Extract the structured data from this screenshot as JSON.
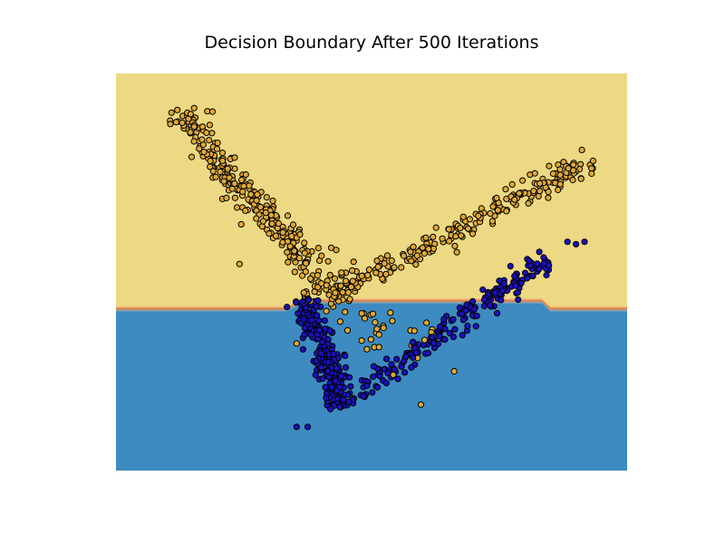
{
  "chart_data": {
    "type": "scatter",
    "title": "Decision Boundary After 500 Iterations",
    "xlabel": "",
    "ylabel": "",
    "axes_visible": false,
    "grid": false,
    "legend": "none",
    "xlim": [
      -3,
      3
    ],
    "ylim": [
      -2,
      3
    ],
    "decision_boundary": {
      "type": "piecewise",
      "x": [
        -3.0,
        -1.0,
        -0.8,
        2.0,
        2.1,
        3.0
      ],
      "y": [
        0.0,
        0.0,
        0.1,
        0.1,
        0.0,
        0.0
      ],
      "regions": [
        {
          "class": "upper",
          "color": "#EDD983"
        },
        {
          "class": "lower",
          "color": "#3D8BC0"
        }
      ],
      "transition_colors": [
        "#F0C27A",
        "#E79A5D",
        "#D97554",
        "#9AA99A",
        "#6A9AB8"
      ]
    },
    "classes": [
      {
        "color": "#E0A935"
      },
      {
        "color": "#1A10C0"
      }
    ],
    "clusters": [
      {
        "class": 0,
        "start": [
          -2.3,
          2.55
        ],
        "end": [
          -0.75,
          0.6
        ],
        "spread": 0.09,
        "count": 260,
        "seed": 11
      },
      {
        "class": 0,
        "start": [
          -0.6,
          0.15
        ],
        "end": [
          2.55,
          1.9
        ],
        "spread": 0.07,
        "count": 230,
        "seed": 23
      },
      {
        "class": 0,
        "start": [
          -0.8,
          0.5
        ],
        "end": [
          -0.2,
          0.2
        ],
        "spread": 0.2,
        "count": 60,
        "seed": 31
      },
      {
        "class": 0,
        "start": [
          -0.3,
          -0.1
        ],
        "end": [
          0.6,
          -0.5
        ],
        "spread": 0.2,
        "count": 28,
        "seed": 37
      },
      {
        "class": 1,
        "start": [
          -0.8,
          0.2
        ],
        "end": [
          -0.35,
          -1.2
        ],
        "spread": 0.09,
        "count": 230,
        "seed": 41
      },
      {
        "class": 1,
        "start": [
          -0.2,
          -1.05
        ],
        "end": [
          2.05,
          0.65
        ],
        "spread": 0.07,
        "count": 200,
        "seed": 53
      }
    ],
    "points": [
      {
        "class": 0,
        "x": -2.28,
        "y": 2.54
      },
      {
        "class": 0,
        "x": -2.15,
        "y": 2.47
      },
      {
        "class": 0,
        "x": -1.9,
        "y": 2.35
      },
      {
        "class": 0,
        "x": -1.75,
        "y": 2.0
      },
      {
        "class": 0,
        "x": -1.75,
        "y": 1.42
      },
      {
        "class": 0,
        "x": -1.53,
        "y": 1.1
      },
      {
        "class": 0,
        "x": -1.55,
        "y": 0.6
      },
      {
        "class": 0,
        "x": 2.6,
        "y": 1.9
      },
      {
        "class": 0,
        "x": 0.97,
        "y": -0.75
      },
      {
        "class": 0,
        "x": 0.58,
        "y": -1.17
      },
      {
        "class": 0,
        "x": -0.88,
        "y": -0.4
      },
      {
        "class": 1,
        "x": -0.88,
        "y": -1.45
      },
      {
        "class": 1,
        "x": -0.75,
        "y": -1.45
      },
      {
        "class": 1,
        "x": 2.3,
        "y": 0.88
      },
      {
        "class": 1,
        "x": 2.4,
        "y": 0.85
      },
      {
        "class": 1,
        "x": 2.5,
        "y": 0.88
      }
    ]
  }
}
